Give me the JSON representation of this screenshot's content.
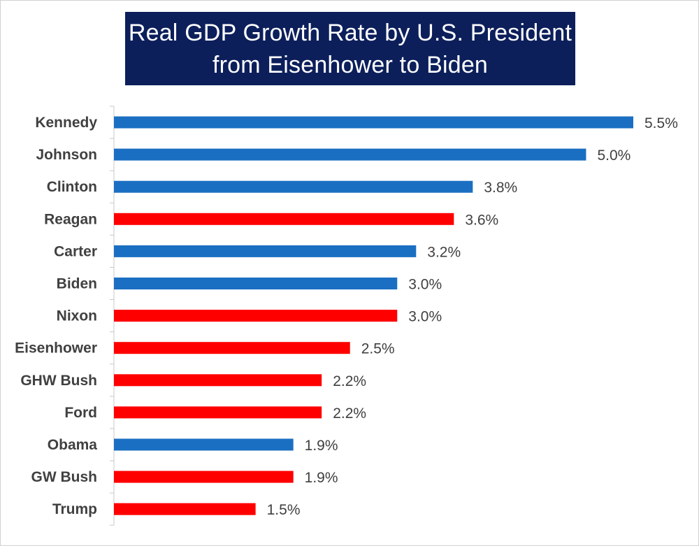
{
  "chart_data": {
    "type": "bar",
    "orientation": "horizontal",
    "title_lines": [
      "Real GDP Growth Rate by U.S. President",
      "from Eisenhower to Biden"
    ],
    "categories": [
      "Kennedy",
      "Johnson",
      "Clinton",
      "Reagan",
      "Carter",
      "Biden",
      "Nixon",
      "Eisenhower",
      "GHW Bush",
      "Ford",
      "Obama",
      "GW Bush",
      "Trump"
    ],
    "values": [
      5.5,
      5.0,
      3.8,
      3.6,
      3.2,
      3.0,
      3.0,
      2.5,
      2.2,
      2.2,
      1.9,
      1.9,
      1.5
    ],
    "value_labels": [
      "5.5%",
      "5.0%",
      "3.8%",
      "3.6%",
      "3.2%",
      "3.0%",
      "3.0%",
      "2.5%",
      "2.2%",
      "2.2%",
      "1.9%",
      "1.9%",
      "1.5%"
    ],
    "party": [
      "D",
      "D",
      "D",
      "R",
      "D",
      "D",
      "R",
      "R",
      "R",
      "R",
      "D",
      "R",
      "R"
    ],
    "colors": {
      "D": "#1b6fc2",
      "R": "#ff0000"
    },
    "xlim": [
      0,
      5.5
    ],
    "grid": false,
    "legend": "none"
  }
}
